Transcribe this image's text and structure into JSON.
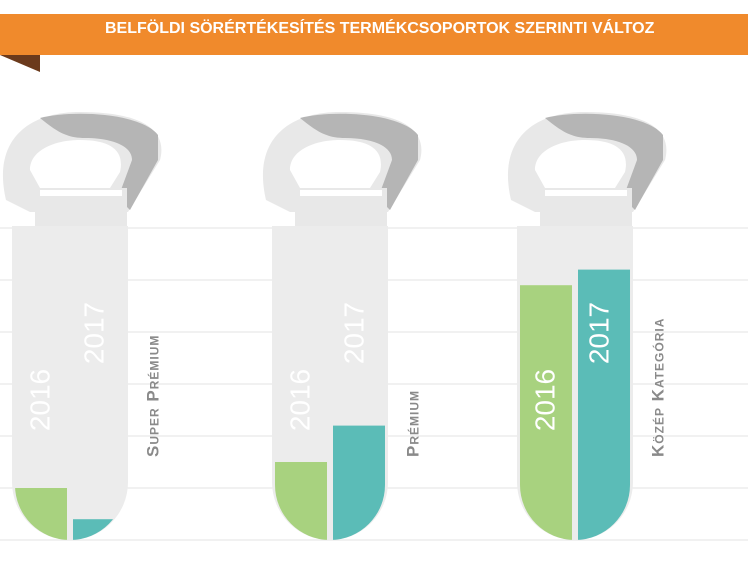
{
  "chart_data": {
    "type": "bar",
    "title": "BELFÖLDI SÖRÉRTÉKESÍTÉS TERMÉKCSOPORTOK SZERINTI VÁLTOZ",
    "categories": [
      "Super Prémium",
      "Prémium",
      "Közép Kategória"
    ],
    "series": [
      {
        "name": "2016",
        "color": "#a8d27f",
        "values": [
          1.0,
          1.5,
          4.9
        ]
      },
      {
        "name": "2017",
        "color": "#5bbcb7",
        "values": [
          0.4,
          2.2,
          5.2
        ]
      }
    ],
    "ylim": [
      0,
      6
    ],
    "yticks": [
      0,
      1,
      2,
      3,
      4,
      5,
      6
    ],
    "grid": true
  }
}
